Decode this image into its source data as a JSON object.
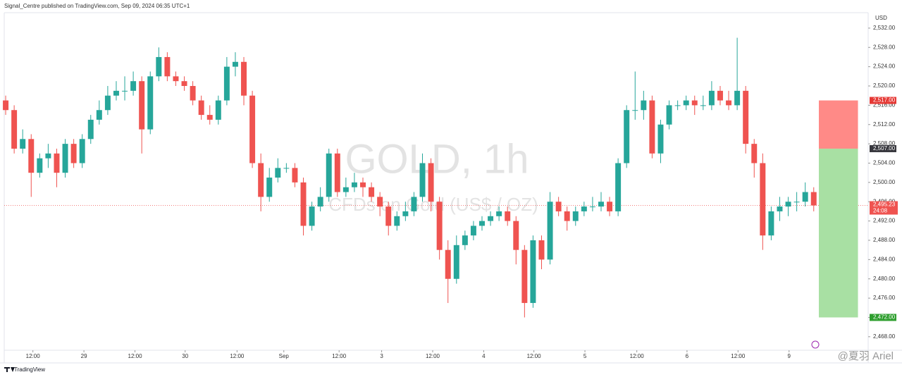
{
  "header": "Signal_Centre published on TradingView.com, Sep 09, 2024 06:35 UTC+1",
  "footer": "TradingView",
  "signature": "@夏羽 Ariel",
  "chart_data": {
    "type": "candlestick",
    "watermark_title": "GOLD, 1h",
    "watermark_subtitle": "CFDs on Gold (US$ / OZ)",
    "currency": "USD",
    "up_color": "#26a69a",
    "down_color": "#ef5350",
    "open": [
      2517,
      2515,
      2507,
      2509,
      2502,
      2505,
      2506,
      2502,
      2508,
      2504,
      2509,
      2513,
      2515,
      2518,
      2519,
      2519,
      2521,
      2511,
      2522,
      2526,
      2522,
      2521,
      2520,
      2517,
      2514,
      2513,
      2517,
      2524,
      2525,
      2518,
      2504,
      2497,
      2501,
      2503,
      2503,
      2500,
      2491,
      2495,
      2497,
      2506,
      2498,
      2499,
      2500,
      2499,
      2497,
      2495,
      2491,
      2493,
      2494,
      2497,
      2504,
      2496,
      2486,
      2480,
      2487,
      2489,
      2491,
      2492,
      2493,
      2494,
      2492,
      2486,
      2475,
      2488,
      2484,
      2496,
      2494,
      2492,
      2494,
      2495,
      2495,
      2496,
      2494,
      2504,
      2515,
      2515,
      2517,
      2506,
      2512,
      2516,
      2516,
      2517,
      2516,
      2516,
      2519,
      2517,
      2516,
      2519,
      2508,
      2504,
      2489,
      2494,
      2495,
      2496,
      2496,
      2498
    ],
    "high": [
      2518,
      2516,
      2511,
      2510,
      2506,
      2508,
      2507,
      2509,
      2509,
      2510,
      2514,
      2517,
      2520,
      2521,
      2522,
      2523,
      2522,
      2523,
      2528,
      2527,
      2523,
      2522,
      2521,
      2518,
      2516,
      2518,
      2526,
      2527,
      2526,
      2519,
      2506,
      2503,
      2505,
      2504,
      2504,
      2501,
      2496,
      2499,
      2507,
      2507,
      2501,
      2502,
      2501,
      2500,
      2498,
      2496,
      2494,
      2496,
      2498,
      2506,
      2505,
      2497,
      2488,
      2489,
      2490,
      2492,
      2493,
      2494,
      2495,
      2495,
      2493,
      2487,
      2489,
      2489,
      2498,
      2497,
      2495,
      2495,
      2496,
      2497,
      2498,
      2497,
      2505,
      2516,
      2523,
      2519,
      2518,
      2513,
      2517,
      2517,
      2518,
      2518,
      2518,
      2521,
      2520,
      2519,
      2530,
      2520,
      2509,
      2506,
      2495,
      2497,
      2497,
      2498,
      2500,
      2499
    ],
    "low": [
      2514,
      2506,
      2506,
      2497,
      2501,
      2503,
      2499,
      2501,
      2503,
      2503,
      2508,
      2512,
      2514,
      2517,
      2517,
      2518,
      2506,
      2510,
      2521,
      2521,
      2520,
      2519,
      2516,
      2513,
      2512,
      2512,
      2516,
      2522,
      2516,
      2503,
      2494,
      2496,
      2500,
      2502,
      2499,
      2489,
      2490,
      2494,
      2496,
      2497,
      2497,
      2498,
      2497,
      2496,
      2493,
      2489,
      2490,
      2492,
      2493,
      2496,
      2494,
      2484,
      2475,
      2479,
      2486,
      2488,
      2490,
      2491,
      2492,
      2491,
      2483,
      2472,
      2474,
      2482,
      2483,
      2493,
      2490,
      2491,
      2493,
      2494,
      2494,
      2493,
      2493,
      2503,
      2513,
      2513,
      2505,
      2504,
      2511,
      2515,
      2515,
      2514,
      2515,
      2515,
      2516,
      2515,
      2515,
      2506,
      2501,
      2486,
      2488,
      2492,
      2493,
      2494,
      2495,
      2494
    ],
    "close": [
      2515,
      2507,
      2509,
      2502,
      2505,
      2506,
      2502,
      2508,
      2504,
      2509,
      2513,
      2515,
      2518,
      2519,
      2519,
      2521,
      2511,
      2522,
      2526,
      2522,
      2521,
      2520,
      2517,
      2514,
      2513,
      2517,
      2524,
      2525,
      2518,
      2504,
      2497,
      2501,
      2503,
      2503,
      2500,
      2491,
      2495,
      2497,
      2506,
      2498,
      2499,
      2500,
      2499,
      2497,
      2495,
      2491,
      2493,
      2494,
      2497,
      2504,
      2496,
      2486,
      2480,
      2487,
      2489,
      2491,
      2492,
      2493,
      2494,
      2492,
      2486,
      2475,
      2488,
      2484,
      2496,
      2494,
      2492,
      2494,
      2495,
      2495,
      2496,
      2494,
      2504,
      2515,
      2515,
      2517,
      2506,
      2512,
      2516,
      2516,
      2517,
      2516,
      2516,
      2519,
      2517,
      2516,
      2519,
      2508,
      2504,
      2489,
      2494,
      2495,
      2496,
      2496,
      2498,
      2495.23
    ],
    "last_price": 2495.23,
    "last_price_label": "2,495.23",
    "countdown": "24:08",
    "position": {
      "stop": 2517,
      "stop_label": "2,517.00",
      "entry": 2507,
      "entry_label": "2,507.00",
      "target": 2472,
      "target_label": "2,472.00"
    },
    "ylim": [
      2465.2,
      2535.2
    ],
    "yticks": [
      {
        "value": 2468,
        "label": "2,468.00"
      },
      {
        "value": 2472,
        "label": "2,472.00"
      },
      {
        "value": 2476,
        "label": "2,476.00"
      },
      {
        "value": 2480,
        "label": "2,480.00"
      },
      {
        "value": 2484,
        "label": "2,484.00"
      },
      {
        "value": 2488,
        "label": "2,488.00"
      },
      {
        "value": 2492,
        "label": "2,492.00"
      },
      {
        "value": 2496,
        "label": "2,496.00"
      },
      {
        "value": 2500,
        "label": "2,500.00"
      },
      {
        "value": 2504,
        "label": "2,504.00"
      },
      {
        "value": 2508,
        "label": "2,508.00"
      },
      {
        "value": 2512,
        "label": "2,512.00"
      },
      {
        "value": 2516,
        "label": "2,516.00"
      },
      {
        "value": 2520,
        "label": "2,520.00"
      },
      {
        "value": 2524,
        "label": "2,524.00"
      },
      {
        "value": 2528,
        "label": "2,528.00"
      },
      {
        "value": 2532,
        "label": "2,532.00"
      }
    ],
    "xlim": [
      -0.17,
      101.4
    ],
    "xticks": [
      {
        "value": 3.2,
        "label": "12:00"
      },
      {
        "value": 9.2,
        "label": "29"
      },
      {
        "value": 15.2,
        "label": "12:00"
      },
      {
        "value": 21.1,
        "label": "30"
      },
      {
        "value": 27.2,
        "label": "12:00"
      },
      {
        "value": 32.7,
        "label": "Sep"
      },
      {
        "value": 39.2,
        "label": "12:00"
      },
      {
        "value": 44.2,
        "label": "3"
      },
      {
        "value": 50.2,
        "label": "12:00"
      },
      {
        "value": 56.2,
        "label": "4"
      },
      {
        "value": 62.1,
        "label": "12:00"
      },
      {
        "value": 68.1,
        "label": "5"
      },
      {
        "value": 74.2,
        "label": "12:00"
      },
      {
        "value": 80.1,
        "label": "6"
      },
      {
        "value": 86.1,
        "label": "12:00"
      },
      {
        "value": 92.1,
        "label": "9"
      }
    ]
  }
}
